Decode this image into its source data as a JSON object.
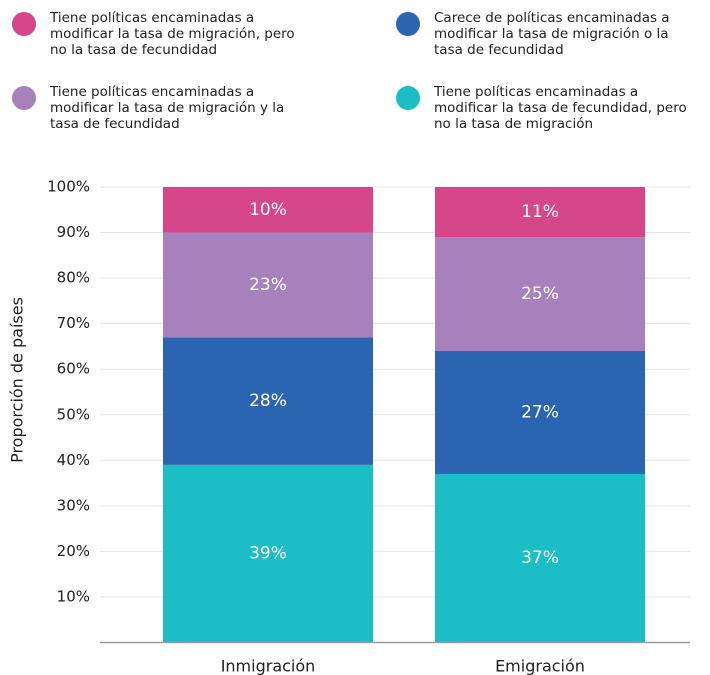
{
  "chart_data": {
    "type": "stacked_bar",
    "categories": [
      "Inmigración",
      "Emigración"
    ],
    "y_label": "Proporción de países",
    "ylim": [
      0,
      100
    ],
    "yticks": [
      {
        "value": 10,
        "label": "10%"
      },
      {
        "value": 20,
        "label": "20%"
      },
      {
        "value": 30,
        "label": "30%"
      },
      {
        "value": 40,
        "label": "40%"
      },
      {
        "value": 50,
        "label": "50%"
      },
      {
        "value": 60,
        "label": "60%"
      },
      {
        "value": 70,
        "label": "70%"
      },
      {
        "value": 80,
        "label": "80%"
      },
      {
        "value": 90,
        "label": "90%"
      },
      {
        "value": 100,
        "label": "100%"
      }
    ],
    "series": [
      {
        "name": "Tiene políticas encaminadas a modificar la tasa de migración, pero no la tasa de fecundidad",
        "color": "#d6478a",
        "values": [
          10,
          11
        ],
        "value_labels": [
          "10%",
          "11%"
        ]
      },
      {
        "name": "Tiene políticas encaminadas a modificar la tasa de migración y la tasa de fecundidad",
        "color": "#a781bc",
        "values": [
          23,
          25
        ],
        "value_labels": [
          "23%",
          "25%"
        ]
      },
      {
        "name": "Carece de políticas encaminadas a modificar la tasa de migración o la tasa de fecundidad",
        "color": "#2b65b2",
        "values": [
          28,
          27
        ],
        "value_labels": [
          "28%",
          "27%"
        ]
      },
      {
        "name": "Tiene políticas encaminadas a modificar la tasa de fecundidad, pero no la tasa de migración",
        "color": "#1bbec4",
        "values": [
          39,
          37
        ],
        "value_labels": [
          "39%",
          "37%"
        ]
      }
    ]
  }
}
